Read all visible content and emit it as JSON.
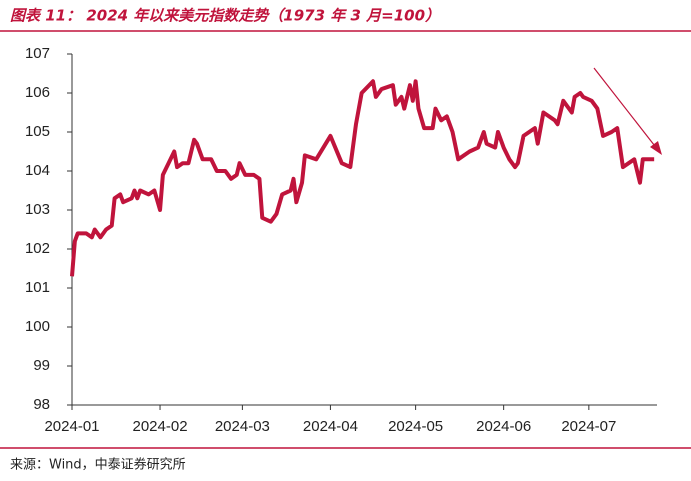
{
  "chart_data": {
    "type": "line",
    "title": "图表 11： 2024 年以来美元指数走势（1973 年 3 月=100）",
    "source": "来源：Wind，中泰证券研究所",
    "x": [
      0,
      1,
      2,
      5,
      7,
      8,
      10,
      12,
      14,
      15,
      17,
      18,
      21,
      22,
      23,
      24,
      27,
      29,
      31,
      32,
      34,
      36,
      37,
      39,
      41,
      43,
      44,
      46,
      49,
      51,
      54,
      56,
      58,
      59,
      61,
      64,
      66,
      67,
      70,
      72,
      74,
      77,
      78,
      79,
      81,
      82,
      86,
      91,
      95,
      98,
      100,
      102,
      106,
      107,
      109,
      113,
      114,
      116,
      117,
      119,
      120,
      121,
      122,
      124,
      127,
      128,
      130,
      132,
      134,
      136,
      140,
      143,
      145,
      146,
      149,
      150,
      152,
      154,
      156,
      157,
      159,
      163,
      164,
      166,
      170,
      171,
      173,
      176,
      177,
      179,
      180,
      183,
      185,
      187,
      190,
      192,
      194,
      196,
      198,
      200,
      201,
      205
    ],
    "series": [
      {
        "name": "美元指数",
        "color": "#c0143c",
        "values": [
          101.3,
          102.2,
          102.4,
          102.4,
          102.3,
          102.5,
          102.3,
          102.5,
          102.6,
          103.3,
          103.4,
          103.2,
          103.3,
          103.5,
          103.3,
          103.5,
          103.4,
          103.5,
          103.0,
          103.9,
          104.2,
          104.5,
          104.1,
          104.2,
          104.2,
          104.8,
          104.7,
          104.3,
          104.3,
          104.0,
          104.0,
          103.8,
          103.9,
          104.2,
          103.9,
          103.9,
          103.8,
          102.8,
          102.7,
          102.9,
          103.4,
          103.5,
          103.8,
          103.2,
          103.7,
          104.4,
          104.3,
          104.9,
          104.2,
          104.1,
          105.2,
          106.0,
          106.3,
          105.9,
          106.1,
          106.2,
          105.7,
          105.9,
          105.6,
          106.2,
          105.8,
          106.3,
          105.6,
          105.1,
          105.1,
          105.6,
          105.3,
          105.4,
          105.0,
          104.3,
          104.5,
          104.6,
          105.0,
          104.7,
          104.6,
          105.0,
          104.6,
          104.3,
          104.1,
          104.2,
          104.9,
          105.1,
          104.7,
          105.5,
          105.3,
          105.2,
          105.8,
          105.5,
          105.9,
          106.0,
          105.9,
          105.8,
          105.6,
          104.9,
          105.0,
          105.1,
          104.1,
          104.2,
          104.3,
          103.7,
          104.3,
          104.3
        ]
      }
    ],
    "xlim": [
      0,
      206
    ],
    "xticks": [
      {
        "value": 0,
        "label": "2024-01"
      },
      {
        "value": 31,
        "label": "2024-02"
      },
      {
        "value": 60,
        "label": "2024-03"
      },
      {
        "value": 91,
        "label": "2024-04"
      },
      {
        "value": 121,
        "label": "2024-05"
      },
      {
        "value": 152,
        "label": "2024-06"
      },
      {
        "value": 182,
        "label": "2024-07"
      }
    ],
    "ylim": [
      98,
      107
    ],
    "yticks": [
      98,
      99,
      100,
      101,
      102,
      103,
      104,
      105,
      106,
      107
    ],
    "grid": false
  }
}
